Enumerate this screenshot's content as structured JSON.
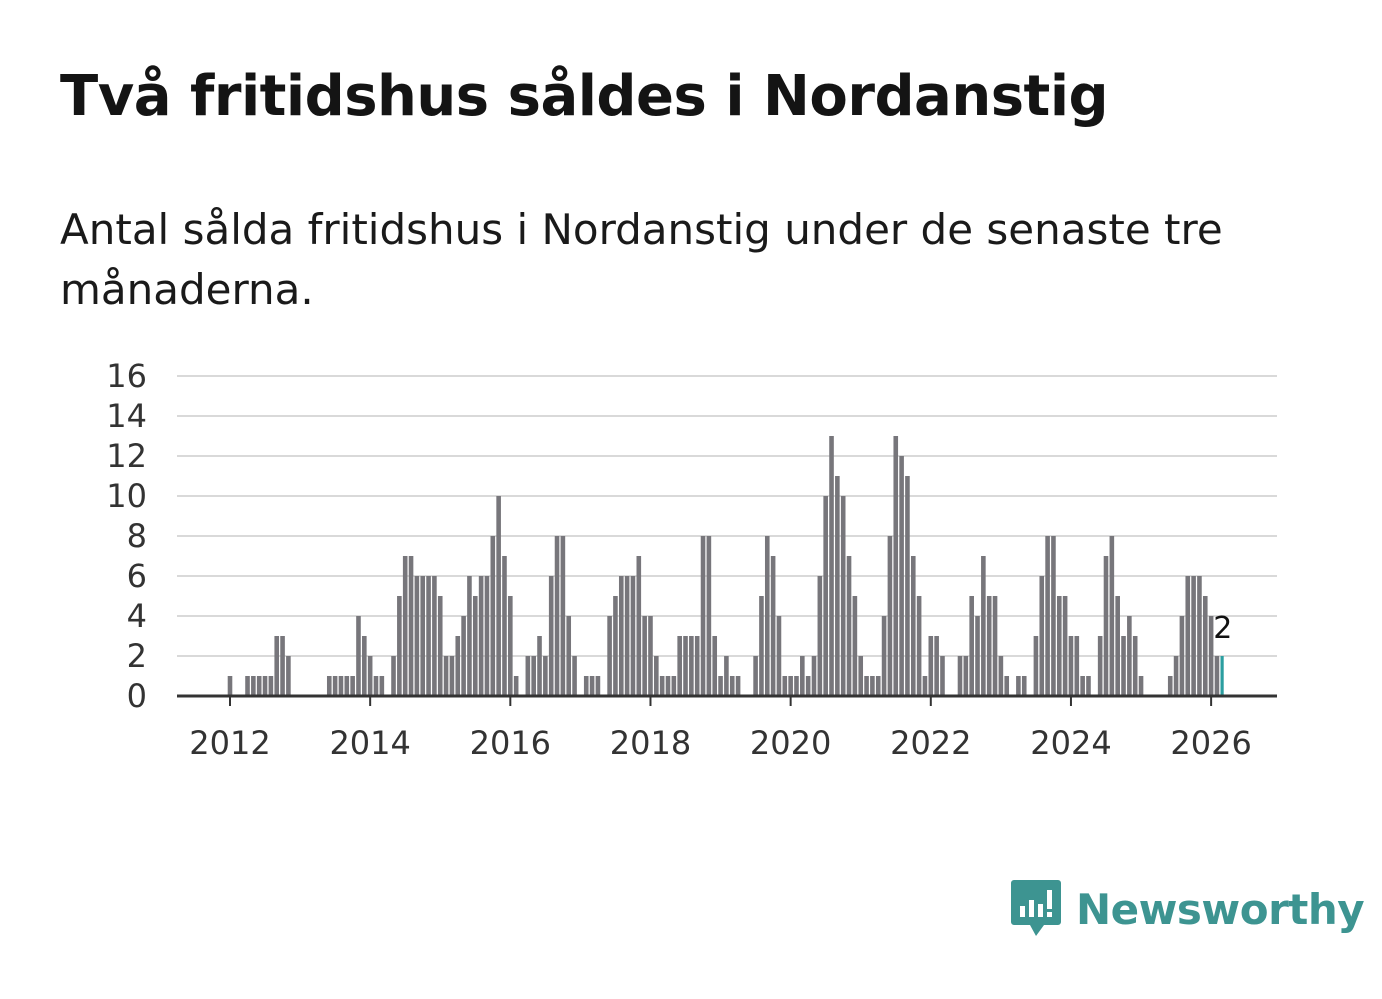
{
  "title": "Två fritidshus såldes i Nordanstig",
  "subtitle": "Antal sålda fritidshus i Nordanstig under de senaste tre månaderna.",
  "brand": {
    "name": "Newsworthy",
    "color": "#3d9491",
    "icon": "bar-chart-speech-bubble-icon"
  },
  "colors": {
    "bar": "#77767b",
    "highlight": "#2b9ea0",
    "grid": "#d9d9d9",
    "axis": "#333333"
  },
  "chart_data": {
    "type": "bar",
    "title": "Antal sålda fritidshus i Nordanstig",
    "xlabel": "",
    "ylabel": "",
    "ylim": [
      0,
      16
    ],
    "yticks": [
      0,
      2,
      4,
      6,
      8,
      10,
      12,
      14,
      16
    ],
    "xticks": [
      "2012",
      "2014",
      "2016",
      "2018",
      "2020",
      "2022",
      "2024",
      "2026"
    ],
    "start": "2011-03",
    "grid": true,
    "values": [
      0,
      0,
      0,
      0,
      0,
      0,
      0,
      0,
      0,
      0,
      1,
      0,
      0,
      1,
      1,
      1,
      1,
      1,
      3,
      3,
      2,
      0,
      0,
      0,
      0,
      0,
      0,
      1,
      1,
      1,
      1,
      1,
      4,
      3,
      2,
      1,
      1,
      0,
      2,
      5,
      7,
      7,
      6,
      6,
      6,
      6,
      5,
      2,
      2,
      3,
      4,
      6,
      5,
      6,
      6,
      8,
      10,
      7,
      5,
      1,
      0,
      2,
      2,
      3,
      2,
      6,
      8,
      8,
      4,
      2,
      0,
      1,
      1,
      1,
      0,
      4,
      5,
      6,
      6,
      6,
      7,
      4,
      4,
      2,
      1,
      1,
      1,
      3,
      3,
      3,
      3,
      8,
      8,
      3,
      1,
      2,
      1,
      1,
      0,
      0,
      2,
      5,
      8,
      7,
      4,
      1,
      1,
      1,
      2,
      1,
      2,
      6,
      10,
      13,
      11,
      10,
      7,
      5,
      2,
      1,
      1,
      1,
      4,
      8,
      13,
      12,
      11,
      7,
      5,
      1,
      3,
      3,
      2,
      0,
      0,
      2,
      2,
      5,
      4,
      7,
      5,
      5,
      2,
      1,
      0,
      1,
      1,
      0,
      3,
      6,
      8,
      8,
      5,
      5,
      3,
      3,
      1,
      1,
      0,
      3,
      7,
      8,
      5,
      3,
      4,
      3,
      1,
      0,
      0,
      0,
      0,
      1,
      2,
      4,
      6,
      6,
      6,
      5,
      4,
      2,
      2
    ],
    "highlight_last": true,
    "last_label": "2"
  }
}
